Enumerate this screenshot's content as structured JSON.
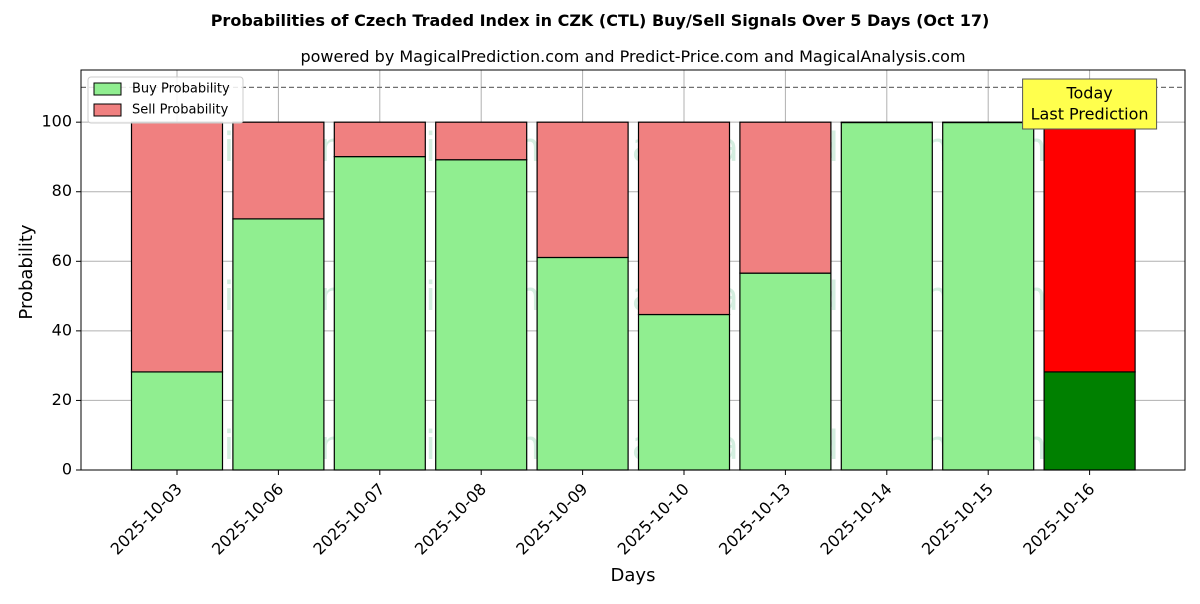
{
  "chart_data": {
    "type": "bar",
    "stacked": true,
    "title": "Probabilities of Czech Traded Index in CZK (CTL) Buy/Sell Signals Over 5 Days (Oct 17)",
    "subtitle": "powered by MagicalPrediction.com and Predict-Price.com and MagicalAnalysis.com",
    "xlabel": "Days",
    "ylabel": "Probability",
    "ylim": [
      0,
      115
    ],
    "yticks": [
      0,
      20,
      40,
      60,
      80,
      100
    ],
    "grid": true,
    "legend_position": "top-left",
    "reference_line": 110,
    "categories": [
      "2025-10-03",
      "2025-10-06",
      "2025-10-07",
      "2025-10-08",
      "2025-10-09",
      "2025-10-10",
      "2025-10-13",
      "2025-10-14",
      "2025-10-15",
      "2025-10-16"
    ],
    "series": [
      {
        "name": "Buy Probability",
        "color": "#90ee90",
        "values": [
          28.2,
          72.2,
          90.1,
          89.2,
          61.1,
          44.7,
          56.6,
          99.9,
          99.9,
          28.2
        ]
      },
      {
        "name": "Sell Probability",
        "color": "#f08080",
        "values": [
          71.8,
          27.8,
          9.9,
          10.8,
          38.9,
          55.3,
          43.4,
          0.1,
          0.1,
          71.8
        ]
      }
    ],
    "highlight": {
      "index": 9,
      "buy_color": "#008000",
      "sell_color": "#ff0000",
      "label_lines": [
        "Today",
        "Last Prediction"
      ],
      "label_bg": "#ffff4d"
    },
    "watermarks": [
      "MagicalAnalysis.com",
      "MagicalPrediction.com"
    ]
  }
}
